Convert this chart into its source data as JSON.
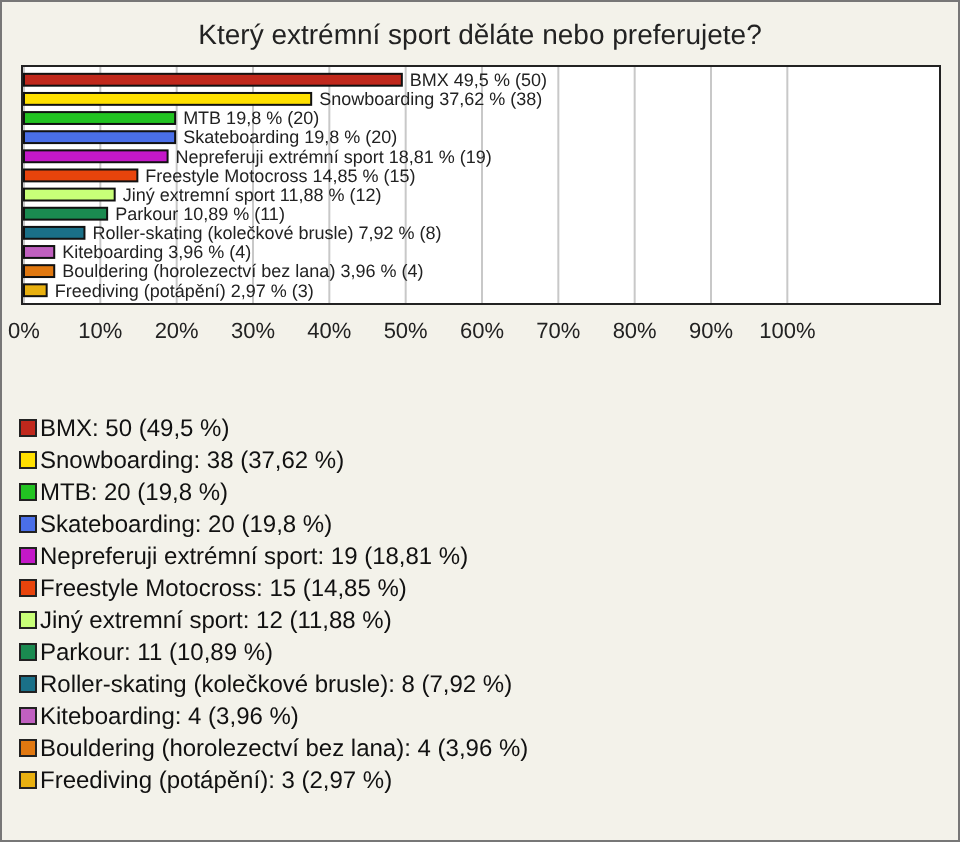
{
  "chart_data": {
    "type": "bar",
    "orientation": "horizontal",
    "title": "Který extrémní sport děláte nebo preferujete?",
    "categories": [
      null,
      null,
      null,
      null,
      null,
      null,
      null,
      null,
      null,
      null,
      null,
      null
    ],
    "values": [
      49.5,
      37.62,
      19.8,
      19.8,
      18.81,
      14.85,
      11.88,
      10.89,
      7.92,
      3.96,
      3.96,
      2.97
    ],
    "colors": [
      "#c0281c",
      "#ffe000",
      "#22c322",
      "#4a6fe8",
      "#c418c8",
      "#e8440c",
      "#c8ff78",
      "#1a8a50",
      "#1a7088",
      "#c060c0",
      "#e07810",
      "#e8b010"
    ],
    "value_labels": [
      "BMX 49,5 % (50)",
      "Snowboarding 37,62 % (38)",
      "MTB 19,8 % (20)",
      "Skateboarding 19,8 % (20)",
      "Nepreferuji extrémní sport 18,81 % (19)",
      "Freestyle Motocross 14,85 % (15)",
      "Jiný extremní sport 11,88 % (12)",
      "Parkour 10,89 % (11)",
      "Roller-skating (kolečkové brusle) 7,92 % (8)",
      "Kiteboarding 3,96 % (4)",
      "Bouldering (horolezectví bez lana) 3,96 % (4)",
      "Freediving (potápění) 2,97 % (3)"
    ],
    "xlim": [
      0,
      120
    ],
    "xticks": [
      {
        "value": 0,
        "label": "0%"
      },
      {
        "value": 10,
        "label": "10%"
      },
      {
        "value": 20,
        "label": "20%"
      },
      {
        "value": 30,
        "label": "30%"
      },
      {
        "value": 40,
        "label": "40%"
      },
      {
        "value": 50,
        "label": "50%"
      },
      {
        "value": 60,
        "label": "60%"
      },
      {
        "value": 70,
        "label": "70%"
      },
      {
        "value": 80,
        "label": "80%"
      },
      {
        "value": 90,
        "label": "90%"
      },
      {
        "value": 100,
        "label": "100%"
      }
    ],
    "grid": "x",
    "annotations": [
      "BMX: 50 (49,5 %)",
      "Snowboarding: 38 (37,62 %)",
      "MTB: 20 (19,8 %)",
      "Skateboarding: 20 (19,8 %)",
      "Nepreferuji extrémní sport: 19 (18,81 %)",
      "Freestyle Motocross: 15 (14,85 %)",
      "Jiný extremní sport: 12 (11,88 %)",
      "Parkour: 11 (10,89 %)",
      "Roller-skating (kolečkové brusle): 8 (7,92 %)",
      "Kiteboarding: 4 (3,96 %)",
      "Bouldering (horolezectví bez lana): 4 (3,96 %)",
      "Freediving (potápění): 3 (2,97 %)"
    ]
  }
}
